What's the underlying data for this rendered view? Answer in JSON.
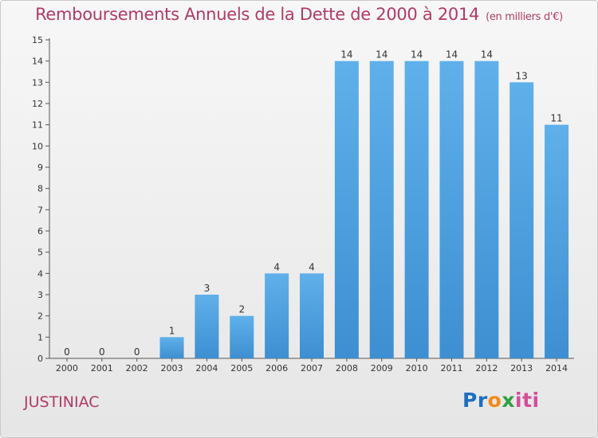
{
  "header": {
    "title": "Remboursements Annuels de la Dette de 2000 à 2014",
    "unit": "(en milliers d'€)"
  },
  "footer": {
    "place": "JUSTINIAC",
    "logo": {
      "letters": [
        "P",
        "r",
        "o",
        "x",
        "i",
        "t",
        "i"
      ],
      "name": "Proxiti"
    }
  },
  "colors": {
    "bar": "#3d8fd1",
    "bar_light": "#5fb0ea",
    "title": "#b03a66"
  },
  "chart_data": {
    "type": "bar",
    "title": "Remboursements Annuels de la Dette de 2000 à 2014",
    "xlabel": "",
    "ylabel": "",
    "categories": [
      "2000",
      "2001",
      "2002",
      "2003",
      "2004",
      "2005",
      "2006",
      "2007",
      "2008",
      "2009",
      "2010",
      "2011",
      "2012",
      "2013",
      "2014"
    ],
    "values": [
      0,
      0,
      0,
      1,
      3,
      2,
      4,
      4,
      14,
      14,
      14,
      14,
      14,
      13,
      11
    ],
    "ylim": [
      0,
      15
    ],
    "yticks": [
      0,
      1,
      2,
      3,
      4,
      5,
      6,
      7,
      8,
      9,
      10,
      11,
      12,
      13,
      14,
      15
    ],
    "grid": false,
    "legend": "none"
  }
}
